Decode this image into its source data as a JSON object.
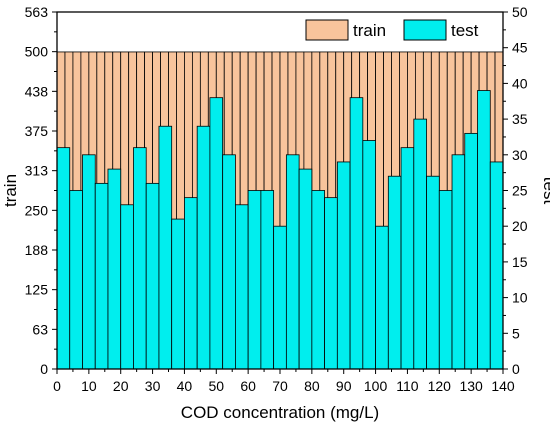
{
  "chart_data": {
    "type": "bar",
    "xlabel": "COD concentration (mg/L)",
    "ylabel_left": "train",
    "ylabel_right": "test",
    "x_ticks": [
      0,
      10,
      20,
      30,
      40,
      50,
      60,
      70,
      80,
      90,
      100,
      110,
      120,
      130,
      140
    ],
    "y_left_ticks": [
      "0",
      "63",
      "125",
      "188",
      "250",
      "313",
      "375",
      "438",
      "500",
      "563"
    ],
    "y_right_ticks": [
      0,
      5,
      10,
      15,
      20,
      25,
      30,
      35,
      40,
      45,
      50
    ],
    "xlim": [
      0,
      140
    ],
    "ylim_left": [
      0,
      563
    ],
    "ylim_right": [
      0,
      50
    ],
    "bin_width": 2.5,
    "legend": {
      "placement": "top-right"
    },
    "colors": {
      "train": "#f8c49c",
      "test": "#00eeee"
    },
    "series": [
      {
        "name": "train",
        "axis": "left",
        "bin_starts": [
          0,
          2.5,
          5,
          7.5,
          10,
          12.5,
          15,
          17.5,
          20,
          22.5,
          25,
          27.5,
          30,
          32.5,
          35,
          37.5,
          40,
          42.5,
          45,
          47.5,
          50,
          52.5,
          55,
          57.5,
          60,
          62.5,
          65,
          67.5,
          70,
          72.5,
          75,
          77.5,
          80,
          82.5,
          85,
          87.5,
          90,
          92.5,
          95,
          97.5,
          100,
          102.5,
          105,
          107.5,
          110,
          112.5,
          115,
          117.5,
          120,
          122.5,
          125,
          127.5,
          130,
          132.5,
          135,
          137.5
        ],
        "values": [
          500,
          500,
          500,
          500,
          500,
          500,
          500,
          500,
          500,
          500,
          500,
          500,
          500,
          500,
          500,
          500,
          500,
          500,
          500,
          500,
          500,
          500,
          500,
          500,
          500,
          500,
          500,
          500,
          500,
          500,
          500,
          500,
          500,
          500,
          500,
          500,
          500,
          500,
          500,
          500,
          500,
          500,
          500,
          500,
          500,
          500,
          500,
          500,
          500,
          500,
          500,
          500,
          500,
          500,
          500,
          500
        ]
      },
      {
        "name": "test",
        "axis": "right",
        "bin_starts": [
          0,
          4,
          8,
          12,
          16,
          20,
          24,
          28,
          32,
          36,
          40,
          44,
          48,
          52,
          56,
          60,
          64,
          68,
          72,
          76,
          80,
          84,
          88,
          92,
          96,
          100,
          104,
          108,
          112,
          116,
          120,
          124,
          128,
          132,
          136
        ],
        "bin_width": 4,
        "values": [
          31,
          25,
          30,
          26,
          28,
          23,
          31,
          26,
          34,
          21,
          24,
          34,
          38,
          30,
          23,
          25,
          25,
          20,
          30,
          28,
          25,
          24,
          29,
          38,
          32,
          20,
          27,
          31,
          35,
          27,
          25,
          30,
          33,
          39,
          29
        ]
      }
    ]
  }
}
